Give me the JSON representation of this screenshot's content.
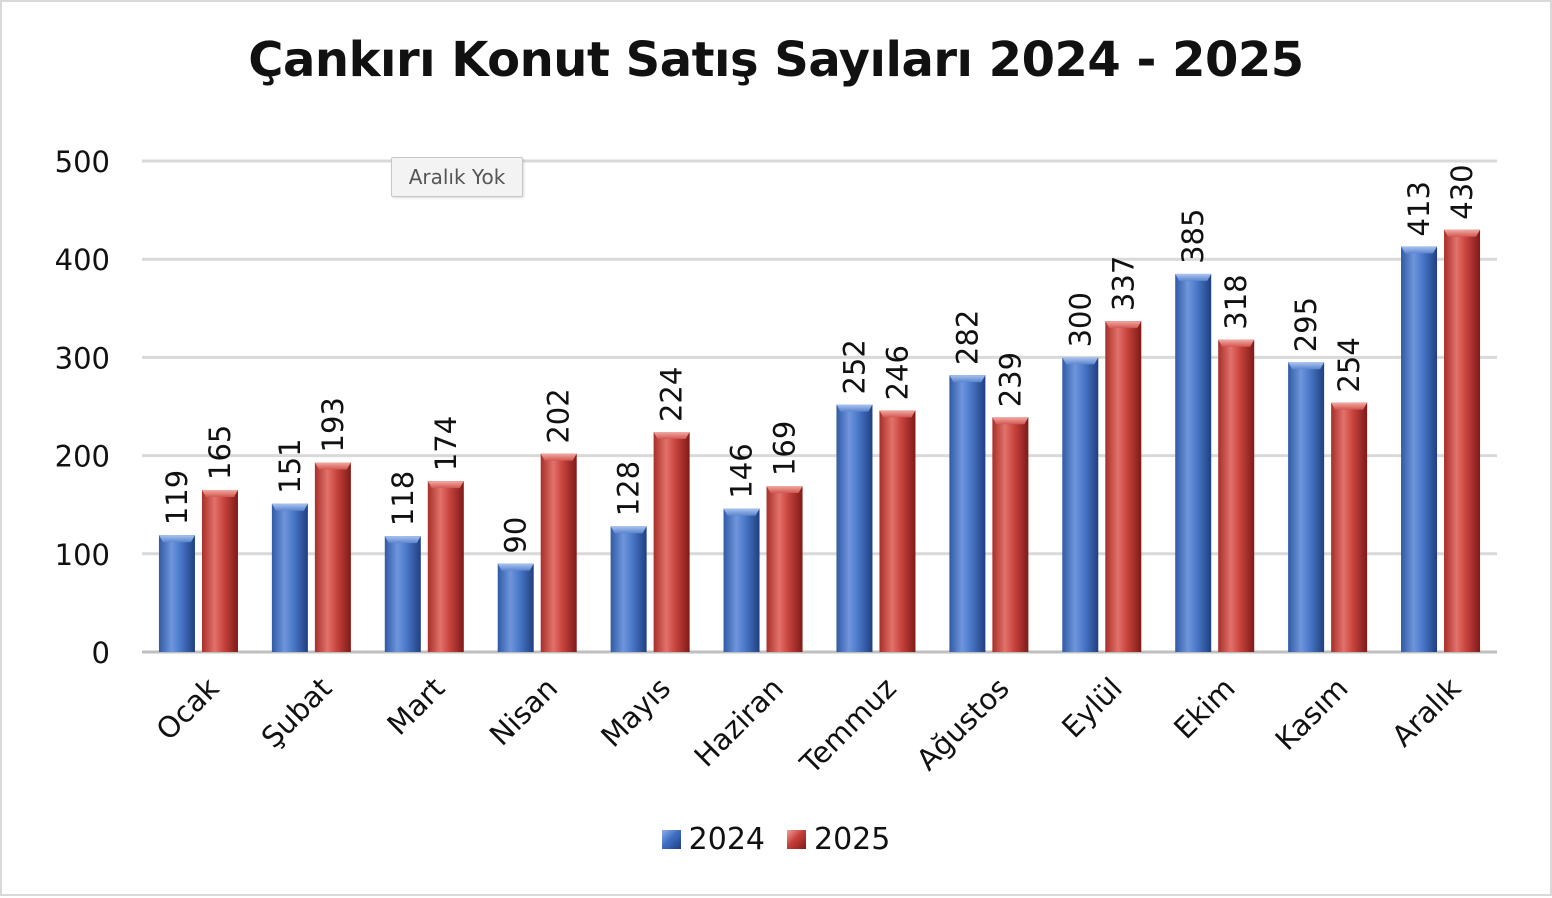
{
  "chart_data": {
    "type": "bar",
    "title": "Çankırı Konut Satış Sayıları 2024 - 2025",
    "categories": [
      "Ocak",
      "Şubat",
      "Mart",
      "Nisan",
      "Mayıs",
      "Haziran",
      "Temmuz",
      "Ağustos",
      "Eylül",
      "Ekim",
      "Kasım",
      "Aralık"
    ],
    "series": [
      {
        "name": "2024",
        "color": "#3f6fc2",
        "values": [
          119,
          151,
          118,
          90,
          128,
          146,
          252,
          282,
          300,
          385,
          295,
          413
        ]
      },
      {
        "name": "2025",
        "color": "#c7403a",
        "values": [
          165,
          193,
          174,
          202,
          224,
          169,
          246,
          239,
          337,
          318,
          254,
          430
        ]
      }
    ],
    "ylim": [
      0,
      500
    ],
    "yticks": [
      0,
      100,
      200,
      300,
      400,
      500
    ],
    "grid": true,
    "legend_position": "bottom",
    "xlabel": "",
    "ylabel": ""
  },
  "tooltip": {
    "text": "Aralık Yok"
  }
}
